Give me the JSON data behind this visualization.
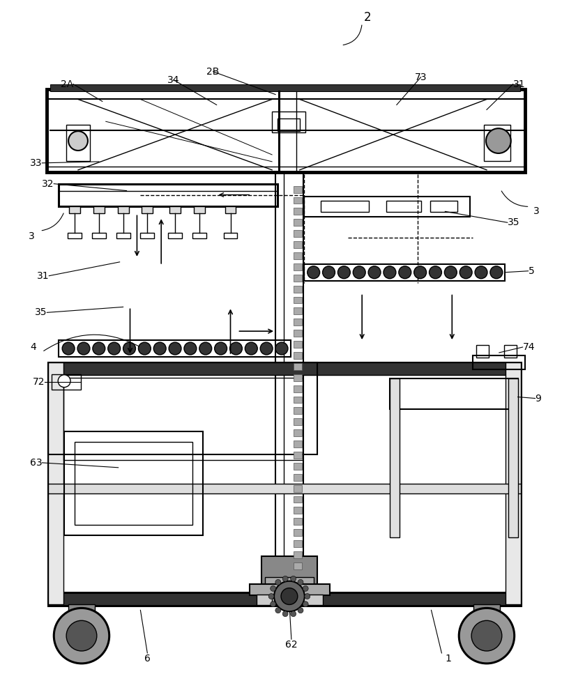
{
  "bg_color": "#ffffff",
  "figsize": [
    8.06,
    10.0
  ],
  "dpi": 100
}
